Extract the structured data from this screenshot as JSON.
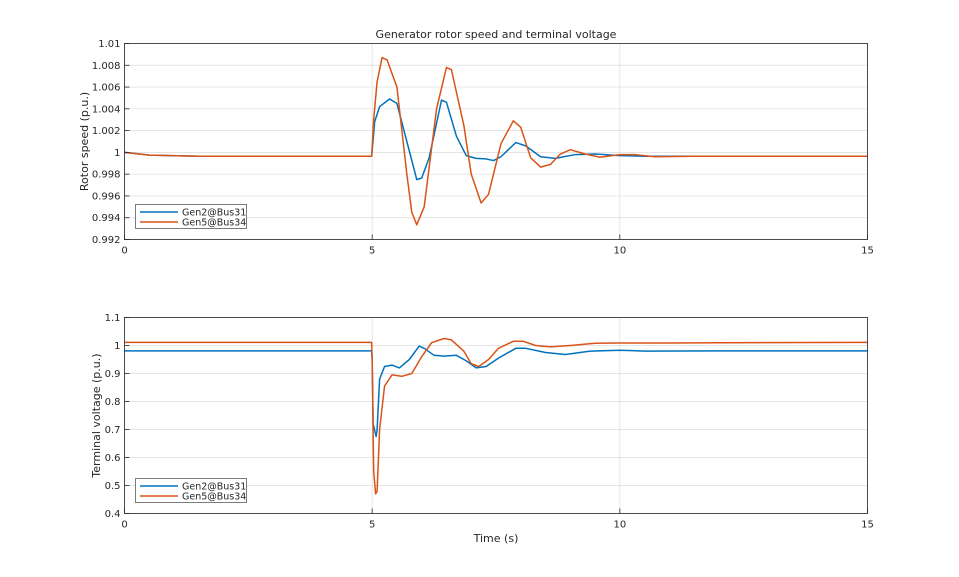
{
  "chart_data": [
    {
      "type": "line",
      "title": "Generator rotor speed and terminal voltage",
      "xlabel": "",
      "ylabel": "Rotor speed (p.u.)",
      "xlim": [
        0,
        15
      ],
      "ylim": [
        0.992,
        1.01
      ],
      "xticks": [
        0,
        5,
        10,
        15
      ],
      "xtick_labels": [
        "0",
        "5",
        "10",
        "15"
      ],
      "yticks": [
        0.992,
        0.994,
        0.996,
        0.998,
        1.0,
        1.002,
        1.004,
        1.006,
        1.008,
        1.01
      ],
      "ytick_labels": [
        "0.992",
        "0.994",
        "0.996",
        "0.998",
        "1",
        "1.002",
        "1.004",
        "1.006",
        "1.008",
        "1.01"
      ],
      "grid": true,
      "legend": "bottom-left",
      "series": [
        {
          "name": "Gen2@Bus31",
          "color": "#0072BD",
          "points": [
            [
              0,
              1.0
            ],
            [
              0.5,
              0.99975
            ],
            [
              1.5,
              0.99965
            ],
            [
              3,
              0.99965
            ],
            [
              4.99,
              0.99965
            ],
            [
              5.05,
              1.0028
            ],
            [
              5.15,
              1.0042
            ],
            [
              5.35,
              1.0049
            ],
            [
              5.5,
              1.0045
            ],
            [
              5.7,
              1.001
            ],
            [
              5.9,
              0.9975
            ],
            [
              6.0,
              0.99765
            ],
            [
              6.15,
              0.9995
            ],
            [
              6.4,
              1.0048
            ],
            [
              6.5,
              1.0046
            ],
            [
              6.7,
              1.0015
            ],
            [
              6.9,
              0.9997
            ],
            [
              7.1,
              0.99945
            ],
            [
              7.3,
              0.9994
            ],
            [
              7.45,
              0.99925
            ],
            [
              7.6,
              0.9996
            ],
            [
              7.9,
              1.0009
            ],
            [
              8.1,
              1.0006
            ],
            [
              8.4,
              0.9996
            ],
            [
              8.7,
              0.99945
            ],
            [
              9.1,
              0.9998
            ],
            [
              9.5,
              0.99985
            ],
            [
              10.0,
              0.9997
            ],
            [
              10.5,
              0.99965
            ],
            [
              11.5,
              0.99965
            ],
            [
              13,
              0.99965
            ],
            [
              15,
              0.99965
            ]
          ]
        },
        {
          "name": "Gen5@Bus34",
          "color": "#D95319",
          "points": [
            [
              0,
              1.0
            ],
            [
              0.5,
              0.99975
            ],
            [
              1.5,
              0.99965
            ],
            [
              3,
              0.99965
            ],
            [
              4.99,
              0.99965
            ],
            [
              5.03,
              1.003
            ],
            [
              5.1,
              1.0065
            ],
            [
              5.2,
              1.0087
            ],
            [
              5.3,
              1.0085
            ],
            [
              5.5,
              1.006
            ],
            [
              5.7,
              0.998
            ],
            [
              5.8,
              0.9945
            ],
            [
              5.9,
              0.99335
            ],
            [
              6.05,
              0.995
            ],
            [
              6.3,
              1.004
            ],
            [
              6.5,
              1.0078
            ],
            [
              6.6,
              1.0076
            ],
            [
              6.85,
              1.0025
            ],
            [
              7.0,
              0.998
            ],
            [
              7.2,
              0.99535
            ],
            [
              7.35,
              0.99615
            ],
            [
              7.6,
              1.0008
            ],
            [
              7.85,
              1.0029
            ],
            [
              8.0,
              1.0023
            ],
            [
              8.2,
              0.9995
            ],
            [
              8.4,
              0.99865
            ],
            [
              8.6,
              0.9989
            ],
            [
              8.8,
              0.99985
            ],
            [
              9.0,
              1.00025
            ],
            [
              9.3,
              0.99985
            ],
            [
              9.6,
              0.99955
            ],
            [
              10.0,
              0.9998
            ],
            [
              10.3,
              0.9998
            ],
            [
              10.7,
              0.9996
            ],
            [
              11.5,
              0.99965
            ],
            [
              13,
              0.99965
            ],
            [
              15,
              0.99965
            ]
          ]
        }
      ]
    },
    {
      "type": "line",
      "title": "",
      "xlabel": "Time (s)",
      "ylabel": "Terminal voltage (p.u.)",
      "xlim": [
        0,
        15
      ],
      "ylim": [
        0.4,
        1.1
      ],
      "xticks": [
        0,
        5,
        10,
        15
      ],
      "xtick_labels": [
        "0",
        "5",
        "10",
        "15"
      ],
      "yticks": [
        0.4,
        0.5,
        0.6,
        0.7,
        0.8,
        0.9,
        1.0,
        1.1
      ],
      "ytick_labels": [
        "0.4",
        "0.5",
        "0.6",
        "0.7",
        "0.8",
        "0.9",
        "1",
        "1.1"
      ],
      "grid": true,
      "legend": "bottom-left",
      "series": [
        {
          "name": "Gen2@Bus31",
          "color": "#0072BD",
          "points": [
            [
              0,
              0.981
            ],
            [
              4.99,
              0.981
            ],
            [
              5.0,
              0.95
            ],
            [
              5.02,
              0.72
            ],
            [
              5.08,
              0.675
            ],
            [
              5.1,
              0.7
            ],
            [
              5.15,
              0.88
            ],
            [
              5.25,
              0.925
            ],
            [
              5.4,
              0.93
            ],
            [
              5.55,
              0.92
            ],
            [
              5.75,
              0.95
            ],
            [
              5.95,
              0.998
            ],
            [
              6.05,
              0.99
            ],
            [
              6.25,
              0.965
            ],
            [
              6.45,
              0.962
            ],
            [
              6.7,
              0.965
            ],
            [
              6.9,
              0.945
            ],
            [
              7.1,
              0.92
            ],
            [
              7.3,
              0.925
            ],
            [
              7.55,
              0.955
            ],
            [
              7.9,
              0.99
            ],
            [
              8.1,
              0.99
            ],
            [
              8.5,
              0.975
            ],
            [
              8.9,
              0.968
            ],
            [
              9.4,
              0.98
            ],
            [
              10.0,
              0.983
            ],
            [
              10.5,
              0.98
            ],
            [
              12,
              0.981
            ],
            [
              15,
              0.981
            ]
          ]
        },
        {
          "name": "Gen5@Bus34",
          "color": "#D95319",
          "points": [
            [
              0,
              1.011
            ],
            [
              4.99,
              1.011
            ],
            [
              5.0,
              0.95
            ],
            [
              5.03,
              0.55
            ],
            [
              5.07,
              0.47
            ],
            [
              5.1,
              0.48
            ],
            [
              5.15,
              0.7
            ],
            [
              5.25,
              0.855
            ],
            [
              5.4,
              0.895
            ],
            [
              5.6,
              0.89
            ],
            [
              5.8,
              0.9
            ],
            [
              6.0,
              0.96
            ],
            [
              6.2,
              1.01
            ],
            [
              6.45,
              1.025
            ],
            [
              6.6,
              1.02
            ],
            [
              6.85,
              0.98
            ],
            [
              7.0,
              0.935
            ],
            [
              7.15,
              0.925
            ],
            [
              7.35,
              0.95
            ],
            [
              7.55,
              0.99
            ],
            [
              7.85,
              1.015
            ],
            [
              8.05,
              1.015
            ],
            [
              8.3,
              1.0
            ],
            [
              8.6,
              0.995
            ],
            [
              9.0,
              1.0
            ],
            [
              9.5,
              1.008
            ],
            [
              10.0,
              1.009
            ],
            [
              11,
              1.009
            ],
            [
              12,
              1.01
            ],
            [
              15,
              1.011
            ]
          ]
        }
      ]
    }
  ]
}
